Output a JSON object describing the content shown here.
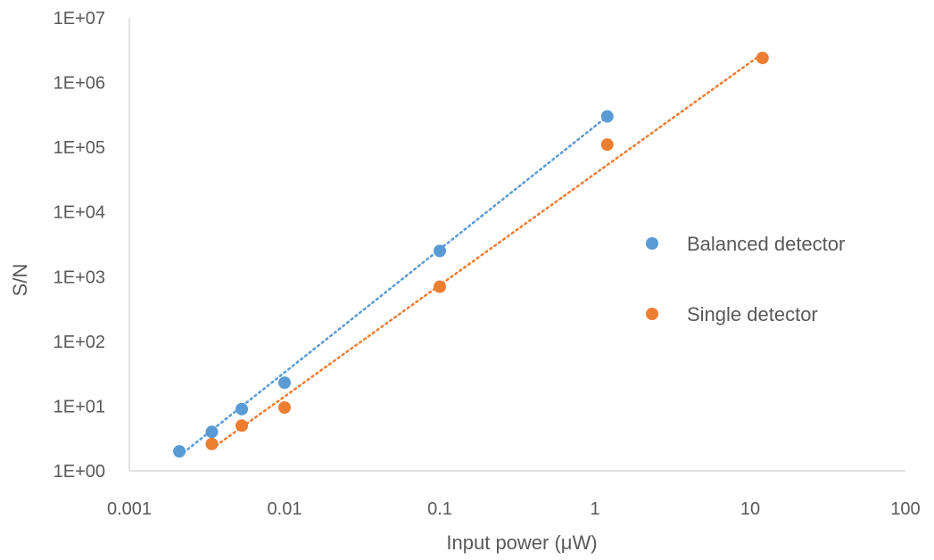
{
  "chart_data": {
    "type": "scatter",
    "xscale": "log",
    "yscale": "log",
    "xlim": [
      0.001,
      100
    ],
    "ylim": [
      1,
      10000000
    ],
    "xlabel": "Input power (μW)",
    "ylabel": "S/N",
    "x_ticks": [
      {
        "value": 0.001,
        "label": "0.001"
      },
      {
        "value": 0.01,
        "label": "0.01"
      },
      {
        "value": 0.1,
        "label": "0.1"
      },
      {
        "value": 1,
        "label": "1"
      },
      {
        "value": 10,
        "label": "10"
      },
      {
        "value": 100,
        "label": "100"
      }
    ],
    "y_ticks": [
      {
        "value": 1,
        "label": "1E+00"
      },
      {
        "value": 10,
        "label": "1E+01"
      },
      {
        "value": 100,
        "label": "1E+02"
      },
      {
        "value": 1000,
        "label": "1E+03"
      },
      {
        "value": 10000,
        "label": "1E+04"
      },
      {
        "value": 100000,
        "label": "1E+05"
      },
      {
        "value": 1000000,
        "label": "1E+06"
      },
      {
        "value": 10000000,
        "label": "1E+07"
      }
    ],
    "grid": false,
    "legend_position": "right",
    "series": [
      {
        "name": "Balanced detector",
        "color": "#5B9BD5",
        "x": [
          0.0021,
          0.0034,
          0.0053,
          0.01,
          0.1,
          1.2
        ],
        "y": [
          2,
          4,
          9,
          23,
          2500,
          300000
        ],
        "trendline": {
          "type": "power",
          "x": [
            0.0021,
            1.2
          ],
          "y": [
            1.7,
            300000
          ]
        }
      },
      {
        "name": "Single detector",
        "color": "#ED7D31",
        "x": [
          0.0034,
          0.0053,
          0.01,
          0.1,
          1.2,
          12
        ],
        "y": [
          2.6,
          5,
          9.5,
          700,
          110000,
          2400000
        ],
        "trendline": {
          "type": "power",
          "x": [
            0.0034,
            12
          ],
          "y": [
            2.2,
            2800000
          ]
        }
      }
    ]
  }
}
